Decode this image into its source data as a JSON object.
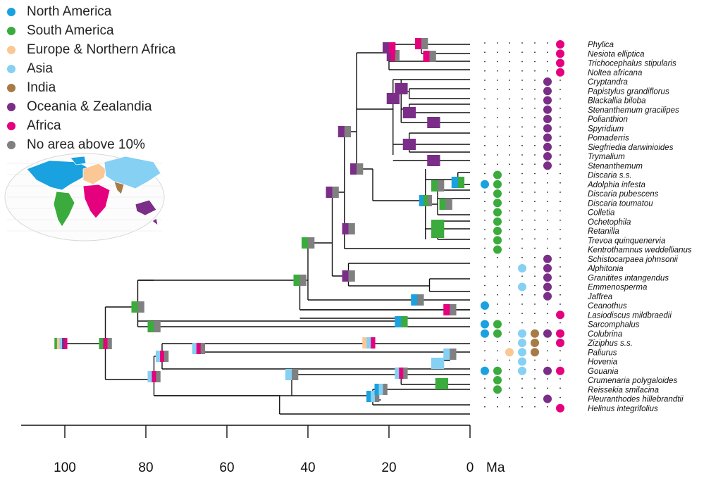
{
  "colors": {
    "north_america": "#1aa1e0",
    "south_america": "#3aab3c",
    "europe_n_africa": "#fbc795",
    "asia": "#85d0f3",
    "india": "#a77a46",
    "oceania": "#7b2e87",
    "africa": "#e5007e",
    "none": "#808080"
  },
  "legend": [
    {
      "key": "north_america",
      "label": "North America"
    },
    {
      "key": "south_america",
      "label": "South America"
    },
    {
      "key": "europe_n_africa",
      "label": "Europe & Northern Africa"
    },
    {
      "key": "asia",
      "label": "Asia"
    },
    {
      "key": "india",
      "label": "India"
    },
    {
      "key": "oceania",
      "label": "Oceania & Zealandia"
    },
    {
      "key": "africa",
      "label": "Africa"
    },
    {
      "key": "none",
      "label": "No area above 10%"
    }
  ],
  "areas": [
    "north_america",
    "south_america",
    "europe_n_africa",
    "asia",
    "india",
    "oceania",
    "africa"
  ],
  "axis": {
    "ticks": [
      100,
      80,
      60,
      40,
      20,
      0
    ],
    "unit": "Ma",
    "range": [
      110,
      0
    ]
  },
  "taxa": [
    {
      "name": "Phylica",
      "areas": [
        "africa"
      ]
    },
    {
      "name": "Nesiota elliptica",
      "areas": [
        "africa"
      ]
    },
    {
      "name": "Trichocephalus stipularis",
      "areas": [
        "africa"
      ]
    },
    {
      "name": "Noltea africana",
      "areas": [
        "africa"
      ]
    },
    {
      "name": "Cryptandra",
      "areas": [
        "oceania"
      ]
    },
    {
      "name": "Papistylus grandiflorus",
      "areas": [
        "oceania"
      ]
    },
    {
      "name": "Blackallia biloba",
      "areas": [
        "oceania"
      ]
    },
    {
      "name": "Stenanthemum gracilipes",
      "areas": [
        "oceania"
      ]
    },
    {
      "name": "Polianthion",
      "areas": [
        "oceania"
      ]
    },
    {
      "name": "Spyridium",
      "areas": [
        "oceania"
      ]
    },
    {
      "name": "Pomaderris",
      "areas": [
        "oceania"
      ]
    },
    {
      "name": "Siegfriedia darwinioides",
      "areas": [
        "oceania"
      ]
    },
    {
      "name": "Trymalium",
      "areas": [
        "oceania"
      ]
    },
    {
      "name": "Stenanthemum",
      "areas": [
        "oceania"
      ]
    },
    {
      "name": "Discaria s.s.",
      "areas": [
        "south_america"
      ]
    },
    {
      "name": "Adolphia infesta",
      "areas": [
        "north_america",
        "south_america"
      ]
    },
    {
      "name": "Discaria pubescens",
      "areas": [
        "south_america"
      ]
    },
    {
      "name": "Discaria toumatou",
      "areas": [
        "south_america"
      ]
    },
    {
      "name": "Colletia",
      "areas": [
        "south_america"
      ]
    },
    {
      "name": "Ochetophila",
      "areas": [
        "south_america"
      ]
    },
    {
      "name": "Retanilla",
      "areas": [
        "south_america"
      ]
    },
    {
      "name": "Trevoa quinquenervia",
      "areas": [
        "south_america"
      ]
    },
    {
      "name": "Kentrothamnus weddellianus",
      "areas": [
        "south_america"
      ]
    },
    {
      "name": "Schistocarpaea johnsonii",
      "areas": [
        "oceania"
      ]
    },
    {
      "name": "Alphitonia",
      "areas": [
        "asia",
        "oceania"
      ]
    },
    {
      "name": "Granitites intangendus",
      "areas": [
        "oceania"
      ]
    },
    {
      "name": "Emmenosperma",
      "areas": [
        "asia",
        "oceania"
      ]
    },
    {
      "name": "Jaffrea",
      "areas": [
        "oceania"
      ]
    },
    {
      "name": "Ceanothus",
      "areas": [
        "north_america"
      ]
    },
    {
      "name": "Lasiodiscus mildbraedii",
      "areas": [
        "africa"
      ]
    },
    {
      "name": "Sarcomphalus",
      "areas": [
        "north_america",
        "south_america"
      ]
    },
    {
      "name": "Colubrina",
      "areas": [
        "north_america",
        "south_america",
        "asia",
        "india",
        "oceania",
        "africa"
      ]
    },
    {
      "name": "Ziziphus s.s.",
      "areas": [
        "asia",
        "india",
        "africa"
      ]
    },
    {
      "name": "Paliurus",
      "areas": [
        "europe_n_africa",
        "asia",
        "india"
      ]
    },
    {
      "name": "Hovenia",
      "areas": [
        "asia"
      ]
    },
    {
      "name": "Gouania",
      "areas": [
        "north_america",
        "south_america",
        "asia",
        "oceania",
        "africa"
      ]
    },
    {
      "name": "Crumenaria polygaloides",
      "areas": [
        "south_america"
      ]
    },
    {
      "name": "Reissekia smilacina",
      "areas": [
        "south_america"
      ]
    },
    {
      "name": "Pleuranthodes hillebrandtii",
      "areas": [
        "oceania"
      ]
    },
    {
      "name": "Helinus integrifolius",
      "areas": [
        "africa"
      ]
    }
  ],
  "nodes": [
    {
      "age": 101,
      "tip_span": [
        0,
        39
      ],
      "areas": [
        "south_america",
        "europe_n_africa",
        "asia",
        "oceania",
        "africa"
      ]
    },
    {
      "age": 90,
      "tip_span": [
        0,
        39
      ],
      "areas": [
        "south_america",
        "africa",
        "none"
      ]
    },
    {
      "age": 82,
      "tip_span": [
        0,
        31
      ],
      "areas": [
        "south_america",
        "none"
      ]
    },
    {
      "age": 78,
      "tip_span": [
        0,
        29
      ],
      "areas": [
        "south_america",
        "none"
      ]
    },
    {
      "age": 78,
      "tip_span": [
        32,
        39
      ],
      "areas": [
        "asia",
        "africa",
        "none"
      ]
    },
    {
      "age": 76,
      "tip_span": [
        32,
        34
      ],
      "areas": [
        "asia",
        "africa",
        "none"
      ]
    },
    {
      "age": 67,
      "tip_span": [
        32,
        34
      ],
      "areas": [
        "asia",
        "africa",
        "none"
      ]
    },
    {
      "age": 42,
      "tip_span": [
        0,
        28
      ],
      "areas": [
        "south_america",
        "none"
      ]
    },
    {
      "age": 40,
      "tip_span": [
        0,
        27
      ],
      "areas": [
        "south_america",
        "none"
      ]
    },
    {
      "age": 34,
      "tip_span": [
        0,
        27
      ],
      "areas": [
        "oceania",
        "none"
      ]
    },
    {
      "age": 31,
      "tip_span": [
        0,
        22
      ],
      "areas": [
        "oceania",
        "none"
      ]
    },
    {
      "age": 30,
      "tip_span": [
        23,
        27
      ],
      "areas": [
        "oceania",
        "none"
      ]
    },
    {
      "age": 30,
      "tip_span": [
        14,
        23
      ],
      "areas": [
        "oceania",
        "none"
      ]
    },
    {
      "age": 28,
      "tip_span": [
        14,
        22
      ],
      "areas": [
        "oceania",
        "none"
      ]
    },
    {
      "age": 25,
      "tip_span": [
        33,
        33
      ],
      "areas": [
        "europe_n_africa",
        "asia",
        "africa"
      ]
    },
    {
      "age": 44,
      "tip_span": [
        35,
        39
      ],
      "areas": [
        "asia",
        "none"
      ]
    },
    {
      "age": 24,
      "tip_span": [
        37,
        38
      ],
      "areas": [
        "north_america",
        "asia",
        "none"
      ]
    },
    {
      "age": 22,
      "tip_span": [
        37,
        38
      ],
      "areas": [
        "north_america",
        "asia",
        "none"
      ]
    },
    {
      "age": 17,
      "tip_span": [
        35,
        36
      ],
      "areas": [
        "asia",
        "africa",
        "none"
      ]
    },
    {
      "age": 7,
      "tip_span": [
        36,
        36
      ],
      "areas": [
        "south_america"
      ]
    },
    {
      "age": 17,
      "tip_span": [
        30,
        31
      ],
      "areas": [
        "north_america",
        "south_america"
      ]
    },
    {
      "age": 13,
      "tip_span": [
        28,
        28
      ],
      "areas": [
        "north_america",
        "none"
      ]
    },
    {
      "age": 5,
      "tip_span": [
        29,
        29
      ],
      "areas": [
        "africa",
        "none"
      ]
    },
    {
      "age": 19,
      "tip_span": [
        0,
        3
      ],
      "areas": [
        "oceania",
        "africa",
        "none"
      ]
    },
    {
      "age": 20,
      "tip_span": [
        0,
        3
      ],
      "areas": [
        "oceania",
        "africa"
      ]
    },
    {
      "age": 12,
      "tip_span": [
        0,
        1
      ],
      "areas": [
        "africa",
        "none"
      ]
    },
    {
      "age": 10,
      "tip_span": [
        1,
        3
      ],
      "areas": [
        "africa",
        "none"
      ]
    },
    {
      "age": 17,
      "tip_span": [
        4,
        13
      ],
      "areas": [
        "oceania"
      ]
    },
    {
      "age": 19,
      "tip_span": [
        4,
        9
      ],
      "areas": [
        "oceania"
      ]
    },
    {
      "age": 15,
      "tip_span": [
        7,
        9
      ],
      "areas": [
        "oceania"
      ]
    },
    {
      "age": 9,
      "tip_span": [
        9,
        9
      ],
      "areas": [
        "oceania"
      ]
    },
    {
      "age": 15,
      "tip_span": [
        10,
        12
      ],
      "areas": [
        "oceania"
      ]
    },
    {
      "age": 9,
      "tip_span": [
        13,
        13
      ],
      "areas": [
        "oceania"
      ]
    },
    {
      "age": 11,
      "tip_span": [
        15,
        21
      ],
      "areas": [
        "north_america",
        "south_america",
        "none"
      ]
    },
    {
      "age": 8,
      "tip_span": [
        16,
        18
      ],
      "areas": [
        "south_america",
        "none"
      ]
    },
    {
      "age": 6,
      "tip_span": [
        17,
        19
      ],
      "areas": [
        "south_america",
        "none"
      ]
    },
    {
      "age": 3,
      "tip_span": [
        14,
        16
      ],
      "areas": [
        "north_america",
        "south_america"
      ]
    },
    {
      "age": 8,
      "tip_span": [
        19,
        21
      ],
      "areas": [
        "south_america"
      ]
    },
    {
      "age": 8,
      "tip_span": [
        20,
        22
      ],
      "areas": [
        "south_america"
      ]
    },
    {
      "age": 5,
      "tip_span": [
        33,
        34
      ],
      "areas": [
        "asia",
        "none"
      ]
    },
    {
      "age": 8,
      "tip_span": [
        33,
        35
      ],
      "areas": [
        "asia"
      ]
    }
  ]
}
